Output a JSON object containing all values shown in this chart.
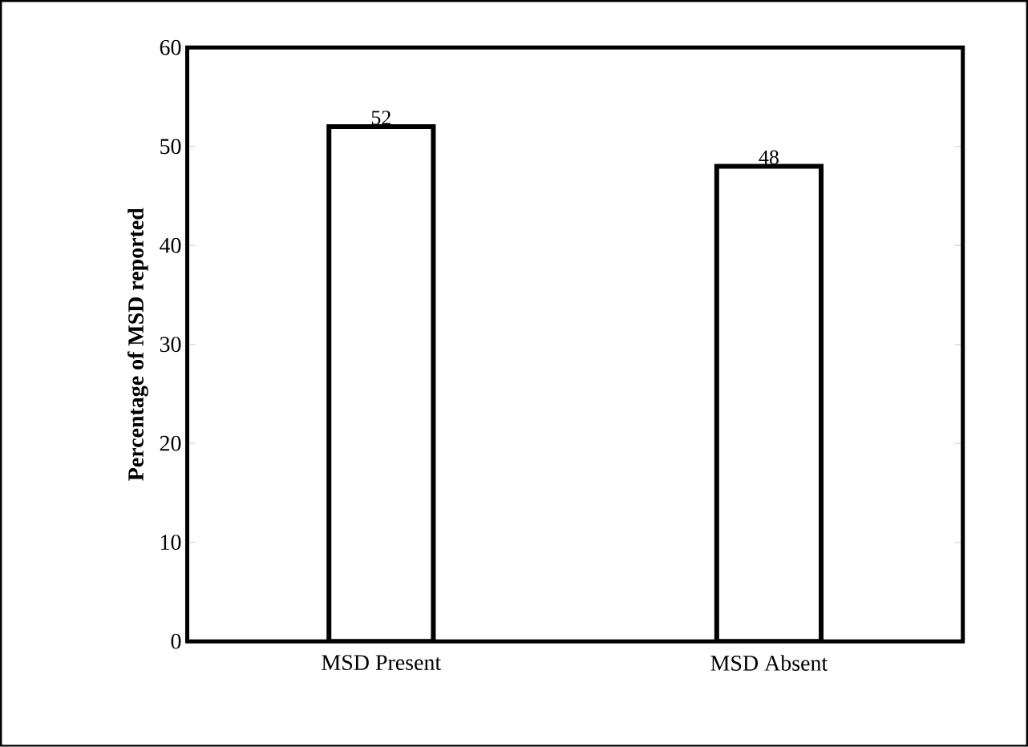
{
  "chart_data": {
    "type": "bar",
    "ylabel": "Percentage of  MSD reported",
    "categories": [
      "MSD Present",
      "MSD Absent"
    ],
    "values": [
      52,
      48
    ],
    "color": "#ffffff",
    "ylim": [
      0,
      60
    ],
    "yticks": [
      0,
      10,
      20,
      30,
      40,
      50,
      60
    ],
    "data_labels": true
  }
}
